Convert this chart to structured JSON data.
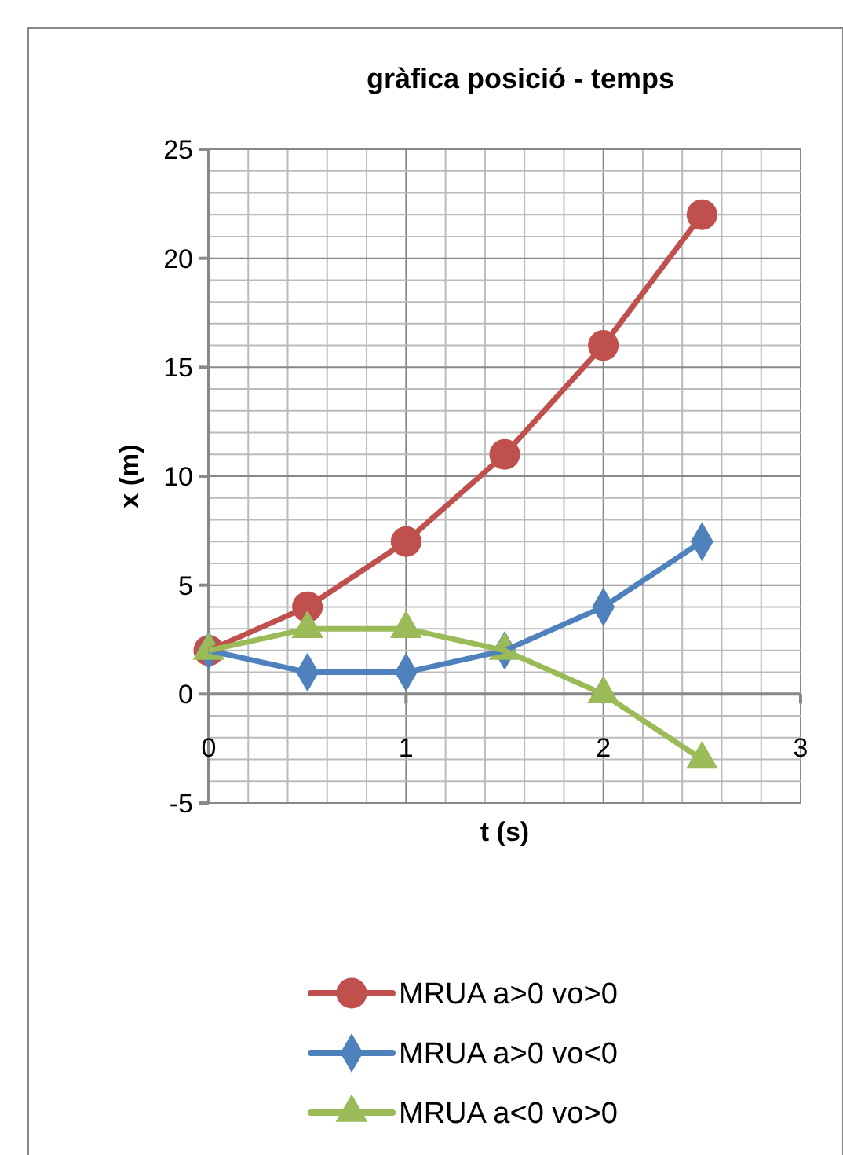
{
  "chart_data": {
    "type": "line",
    "title": "gràfica posició - temps",
    "xlabel": "t (s)",
    "ylabel": "x (m)",
    "x": [
      0,
      0.5,
      1,
      1.5,
      2,
      2.5
    ],
    "series": [
      {
        "name": "MRUA a>0 vo>0",
        "color": "#c0504d",
        "marker": "circle",
        "values": [
          2,
          4,
          7,
          11,
          16,
          22
        ]
      },
      {
        "name": "MRUA a>0 vo<0",
        "color": "#4f81bd",
        "marker": "diamond",
        "values": [
          2,
          1,
          1,
          2,
          4,
          7
        ]
      },
      {
        "name": "MRUA a<0 vo>0",
        "color": "#9bbb59",
        "marker": "triangle",
        "values": [
          2,
          3,
          3,
          2,
          0,
          -3
        ]
      }
    ],
    "xlim": [
      0,
      3
    ],
    "xticks": [
      0,
      1,
      2,
      3
    ],
    "ylim": [
      -5,
      25
    ],
    "yticks": [
      -5,
      0,
      5,
      10,
      15,
      20,
      25
    ],
    "grid": true,
    "legend": "bottom",
    "line_style": "solid"
  }
}
